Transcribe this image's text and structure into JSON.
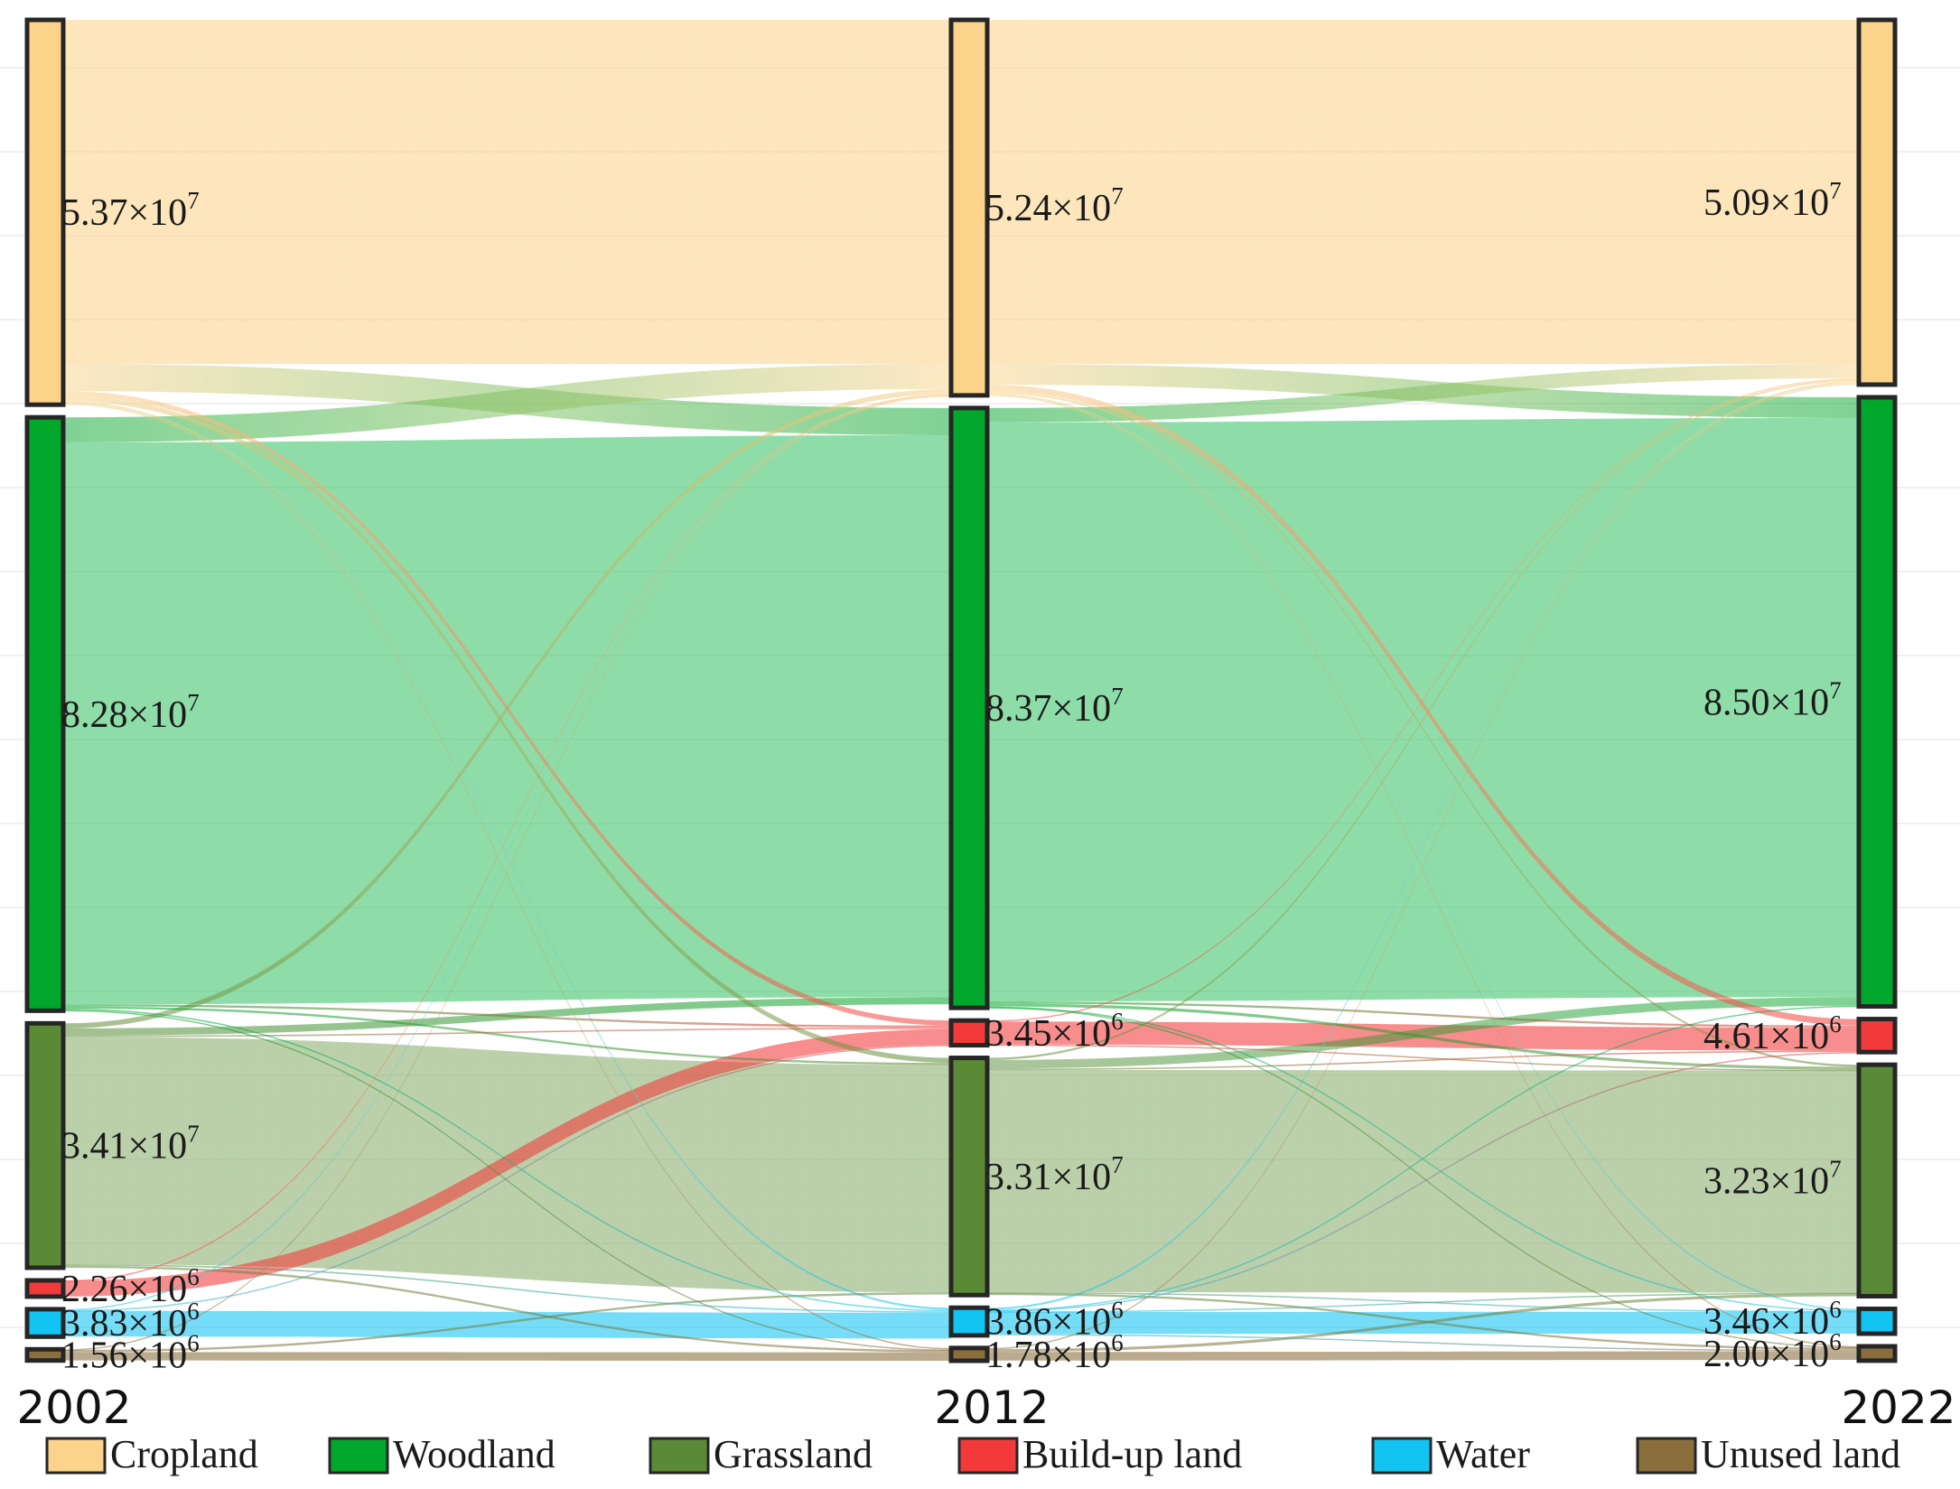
{
  "chart_data": {
    "type": "sankey",
    "stages": [
      "2002",
      "2012",
      "2022"
    ],
    "categories": [
      "Cropland",
      "Woodland",
      "Grassland",
      "Build-up land",
      "Water",
      "Unused land"
    ],
    "colors": {
      "Cropland": "#fbd38a",
      "Woodland": "#00a72a",
      "Grassland": "#5b8a36",
      "Build-up land": "#f23a3a",
      "Water": "#12c4f2",
      "Unused land": "#8a6e3c"
    },
    "nodes": [
      {
        "stage": "2002",
        "category": "Cropland",
        "value": 53700000,
        "mantissa": "5.37",
        "exp": "7"
      },
      {
        "stage": "2002",
        "category": "Woodland",
        "value": 82800000,
        "mantissa": "8.28",
        "exp": "7"
      },
      {
        "stage": "2002",
        "category": "Grassland",
        "value": 34100000,
        "mantissa": "3.41",
        "exp": "7"
      },
      {
        "stage": "2002",
        "category": "Build-up land",
        "value": 2260000,
        "mantissa": "2.26",
        "exp": "6"
      },
      {
        "stage": "2002",
        "category": "Water",
        "value": 3830000,
        "mantissa": "3.83",
        "exp": "6"
      },
      {
        "stage": "2002",
        "category": "Unused land",
        "value": 1560000,
        "mantissa": "1.56",
        "exp": "6"
      },
      {
        "stage": "2012",
        "category": "Cropland",
        "value": 52400000,
        "mantissa": "5.24",
        "exp": "7"
      },
      {
        "stage": "2012",
        "category": "Woodland",
        "value": 83700000,
        "mantissa": "8.37",
        "exp": "7"
      },
      {
        "stage": "2012",
        "category": "Build-up land",
        "value": 3450000,
        "mantissa": "3.45",
        "exp": "6"
      },
      {
        "stage": "2012",
        "category": "Grassland",
        "value": 33100000,
        "mantissa": "3.31",
        "exp": "7"
      },
      {
        "stage": "2012",
        "category": "Water",
        "value": 3860000,
        "mantissa": "3.86",
        "exp": "6"
      },
      {
        "stage": "2012",
        "category": "Unused land",
        "value": 1780000,
        "mantissa": "1.78",
        "exp": "6"
      },
      {
        "stage": "2022",
        "category": "Cropland",
        "value": 50900000,
        "mantissa": "5.09",
        "exp": "7"
      },
      {
        "stage": "2022",
        "category": "Woodland",
        "value": 85000000,
        "mantissa": "8.50",
        "exp": "7"
      },
      {
        "stage": "2022",
        "category": "Build-up land",
        "value": 4610000,
        "mantissa": "4.61",
        "exp": "6"
      },
      {
        "stage": "2022",
        "category": "Grassland",
        "value": 32300000,
        "mantissa": "3.23",
        "exp": "7"
      },
      {
        "stage": "2022",
        "category": "Water",
        "value": 3460000,
        "mantissa": "3.46",
        "exp": "6"
      },
      {
        "stage": "2022",
        "category": "Unused land",
        "value": 2000000,
        "mantissa": "2.00",
        "exp": "6"
      }
    ],
    "flows": [
      {
        "from_stage": "2002",
        "from": "Cropland",
        "to": "Cropland",
        "value": 48000000
      },
      {
        "from_stage": "2002",
        "from": "Cropland",
        "to": "Woodland",
        "value": 3800000
      },
      {
        "from_stage": "2002",
        "from": "Cropland",
        "to": "Build-up land",
        "value": 700000
      },
      {
        "from_stage": "2002",
        "from": "Cropland",
        "to": "Grassland",
        "value": 700000
      },
      {
        "from_stage": "2002",
        "from": "Cropland",
        "to": "Water",
        "value": 300000
      },
      {
        "from_stage": "2002",
        "from": "Cropland",
        "to": "Unused land",
        "value": 200000
      },
      {
        "from_stage": "2002",
        "from": "Woodland",
        "to": "Cropland",
        "value": 3500000
      },
      {
        "from_stage": "2002",
        "from": "Woodland",
        "to": "Woodland",
        "value": 78400000
      },
      {
        "from_stage": "2002",
        "from": "Woodland",
        "to": "Build-up land",
        "value": 300000
      },
      {
        "from_stage": "2002",
        "from": "Woodland",
        "to": "Grassland",
        "value": 300000
      },
      {
        "from_stage": "2002",
        "from": "Woodland",
        "to": "Water",
        "value": 200000
      },
      {
        "from_stage": "2002",
        "from": "Woodland",
        "to": "Unused land",
        "value": 100000
      },
      {
        "from_stage": "2002",
        "from": "Grassland",
        "to": "Cropland",
        "value": 700000
      },
      {
        "from_stage": "2002",
        "from": "Grassland",
        "to": "Woodland",
        "value": 1000000
      },
      {
        "from_stage": "2002",
        "from": "Grassland",
        "to": "Build-up land",
        "value": 200000
      },
      {
        "from_stage": "2002",
        "from": "Grassland",
        "to": "Grassland",
        "value": 31700000
      },
      {
        "from_stage": "2002",
        "from": "Grassland",
        "to": "Water",
        "value": 200000
      },
      {
        "from_stage": "2002",
        "from": "Grassland",
        "to": "Unused land",
        "value": 300000
      },
      {
        "from_stage": "2002",
        "from": "Build-up land",
        "to": "Build-up land",
        "value": 2200000
      },
      {
        "from_stage": "2002",
        "from": "Build-up land",
        "to": "Cropland",
        "value": 60000
      },
      {
        "from_stage": "2002",
        "from": "Water",
        "to": "Cropland",
        "value": 150000
      },
      {
        "from_stage": "2002",
        "from": "Water",
        "to": "Water",
        "value": 3600000
      },
      {
        "from_stage": "2002",
        "from": "Water",
        "to": "Build-up land",
        "value": 80000
      },
      {
        "from_stage": "2002",
        "from": "Unused land",
        "to": "Unused land",
        "value": 1180000
      },
      {
        "from_stage": "2002",
        "from": "Unused land",
        "to": "Grassland",
        "value": 300000
      },
      {
        "from_stage": "2002",
        "from": "Unused land",
        "to": "Cropland",
        "value": 80000
      },
      {
        "from_stage": "2012",
        "from": "Cropland",
        "to": "Cropland",
        "value": 48000000
      },
      {
        "from_stage": "2012",
        "from": "Cropland",
        "to": "Woodland",
        "value": 2900000
      },
      {
        "from_stage": "2012",
        "from": "Cropland",
        "to": "Build-up land",
        "value": 900000
      },
      {
        "from_stage": "2012",
        "from": "Cropland",
        "to": "Grassland",
        "value": 300000
      },
      {
        "from_stage": "2012",
        "from": "Cropland",
        "to": "Water",
        "value": 200000
      },
      {
        "from_stage": "2012",
        "from": "Cropland",
        "to": "Unused land",
        "value": 100000
      },
      {
        "from_stage": "2012",
        "from": "Woodland",
        "to": "Cropland",
        "value": 2000000
      },
      {
        "from_stage": "2012",
        "from": "Woodland",
        "to": "Woodland",
        "value": 80800000
      },
      {
        "from_stage": "2012",
        "from": "Woodland",
        "to": "Build-up land",
        "value": 300000
      },
      {
        "from_stage": "2012",
        "from": "Woodland",
        "to": "Grassland",
        "value": 400000
      },
      {
        "from_stage": "2012",
        "from": "Woodland",
        "to": "Water",
        "value": 100000
      },
      {
        "from_stage": "2012",
        "from": "Woodland",
        "to": "Unused land",
        "value": 100000
      },
      {
        "from_stage": "2012",
        "from": "Build-up land",
        "to": "Build-up land",
        "value": 3200000
      },
      {
        "from_stage": "2012",
        "from": "Build-up land",
        "to": "Cropland",
        "value": 150000
      },
      {
        "from_stage": "2012",
        "from": "Build-up land",
        "to": "Grassland",
        "value": 100000
      },
      {
        "from_stage": "2012",
        "from": "Grassland",
        "to": "Cropland",
        "value": 300000
      },
      {
        "from_stage": "2012",
        "from": "Grassland",
        "to": "Woodland",
        "value": 1200000
      },
      {
        "from_stage": "2012",
        "from": "Grassland",
        "to": "Build-up land",
        "value": 200000
      },
      {
        "from_stage": "2012",
        "from": "Grassland",
        "to": "Grassland",
        "value": 31000000
      },
      {
        "from_stage": "2012",
        "from": "Grassland",
        "to": "Water",
        "value": 100000
      },
      {
        "from_stage": "2012",
        "from": "Grassland",
        "to": "Unused land",
        "value": 300000
      },
      {
        "from_stage": "2012",
        "from": "Water",
        "to": "Cropland",
        "value": 300000
      },
      {
        "from_stage": "2012",
        "from": "Water",
        "to": "Water",
        "value": 3060000
      },
      {
        "from_stage": "2012",
        "from": "Water",
        "to": "Build-up land",
        "value": 100000
      },
      {
        "from_stage": "2012",
        "from": "Water",
        "to": "Woodland",
        "value": 100000
      },
      {
        "from_stage": "2012",
        "from": "Water",
        "to": "Grassland",
        "value": 100000
      },
      {
        "from_stage": "2012",
        "from": "Water",
        "to": "Unused land",
        "value": 200000
      },
      {
        "from_stage": "2012",
        "from": "Unused land",
        "to": "Unused land",
        "value": 1200000
      },
      {
        "from_stage": "2012",
        "from": "Unused land",
        "to": "Grassland",
        "value": 400000
      },
      {
        "from_stage": "2012",
        "from": "Unused land",
        "to": "Cropland",
        "value": 150000
      }
    ],
    "legend": {
      "position": "bottom",
      "entries": [
        "Cropland",
        "Woodland",
        "Grassland",
        "Build-up land",
        "Water",
        "Unused land"
      ]
    },
    "grid": true
  }
}
